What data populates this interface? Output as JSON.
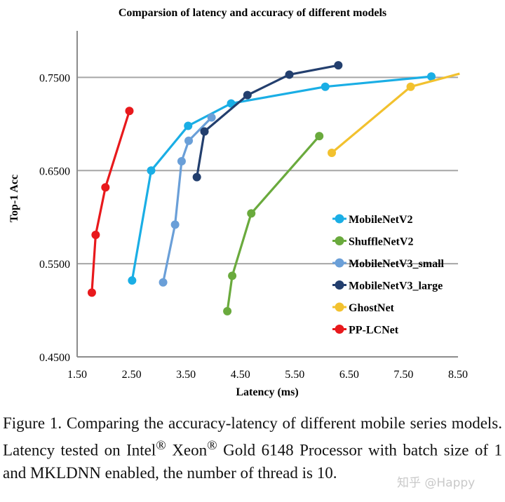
{
  "chart_data": {
    "type": "line",
    "title": "Comparsion of latency and accuracy of different models",
    "xlabel": "Latency (ms)",
    "ylabel": "Top-1 Acc",
    "xlim": [
      1.5,
      8.5
    ],
    "ylim": [
      0.45,
      0.8
    ],
    "x_ticks": [
      "1.50",
      "2.50",
      "3.50",
      "4.50",
      "5.50",
      "6.50",
      "7.50",
      "8.50"
    ],
    "x_tick_values": [
      1.5,
      2.5,
      3.5,
      4.5,
      5.5,
      6.5,
      7.5,
      8.5
    ],
    "y_ticks": [
      "0.4500",
      "0.5500",
      "0.6500",
      "0.7500"
    ],
    "y_tick_values": [
      0.45,
      0.55,
      0.65,
      0.75
    ],
    "grid": "horizontal",
    "legend_position": "right",
    "series": [
      {
        "name": "MobileNetV2",
        "color": "#1aaee5",
        "points": [
          [
            2.51,
            0.532
          ],
          [
            2.86,
            0.65
          ],
          [
            3.54,
            0.698
          ],
          [
            4.33,
            0.722
          ],
          [
            6.06,
            0.74
          ],
          [
            8.01,
            0.751
          ]
        ]
      },
      {
        "name": "ShuffleNetV2",
        "color": "#6aaa3d",
        "points": [
          [
            4.26,
            0.499
          ],
          [
            4.35,
            0.537
          ],
          [
            4.7,
            0.604
          ],
          [
            5.95,
            0.687
          ]
        ]
      },
      {
        "name": "MobileNetV3_small",
        "color": "#6a9fd8",
        "points": [
          [
            3.08,
            0.53
          ],
          [
            3.3,
            0.592
          ],
          [
            3.42,
            0.66
          ],
          [
            3.55,
            0.682
          ],
          [
            3.97,
            0.707
          ]
        ]
      },
      {
        "name": "MobileNetV3_large",
        "color": "#233f6e",
        "points": [
          [
            3.7,
            0.643
          ],
          [
            3.84,
            0.692
          ],
          [
            4.63,
            0.731
          ],
          [
            5.4,
            0.753
          ],
          [
            6.3,
            0.763
          ]
        ]
      },
      {
        "name": "GhostNet",
        "color": "#f2c12e",
        "points": [
          [
            6.18,
            0.669
          ],
          [
            7.63,
            0.74
          ],
          [
            8.53,
            0.754
          ]
        ]
      },
      {
        "name": "PP-LCNet",
        "color": "#e8191c",
        "points": [
          [
            1.77,
            0.519
          ],
          [
            1.84,
            0.581
          ],
          [
            2.02,
            0.632
          ],
          [
            2.46,
            0.714
          ]
        ]
      }
    ]
  },
  "caption": {
    "before_intel": "Figure 1. Comparing the accuracy-latency of different mobile series models. Latency tested on Intel",
    "sup1": "®",
    "xeon": " Xeon",
    "sup2": "®",
    "after_xeon": " Gold 6148 Processor with batch size of 1 and MKLDNN enabled, the number of thread is 10."
  },
  "watermark": "知乎 @Happy"
}
